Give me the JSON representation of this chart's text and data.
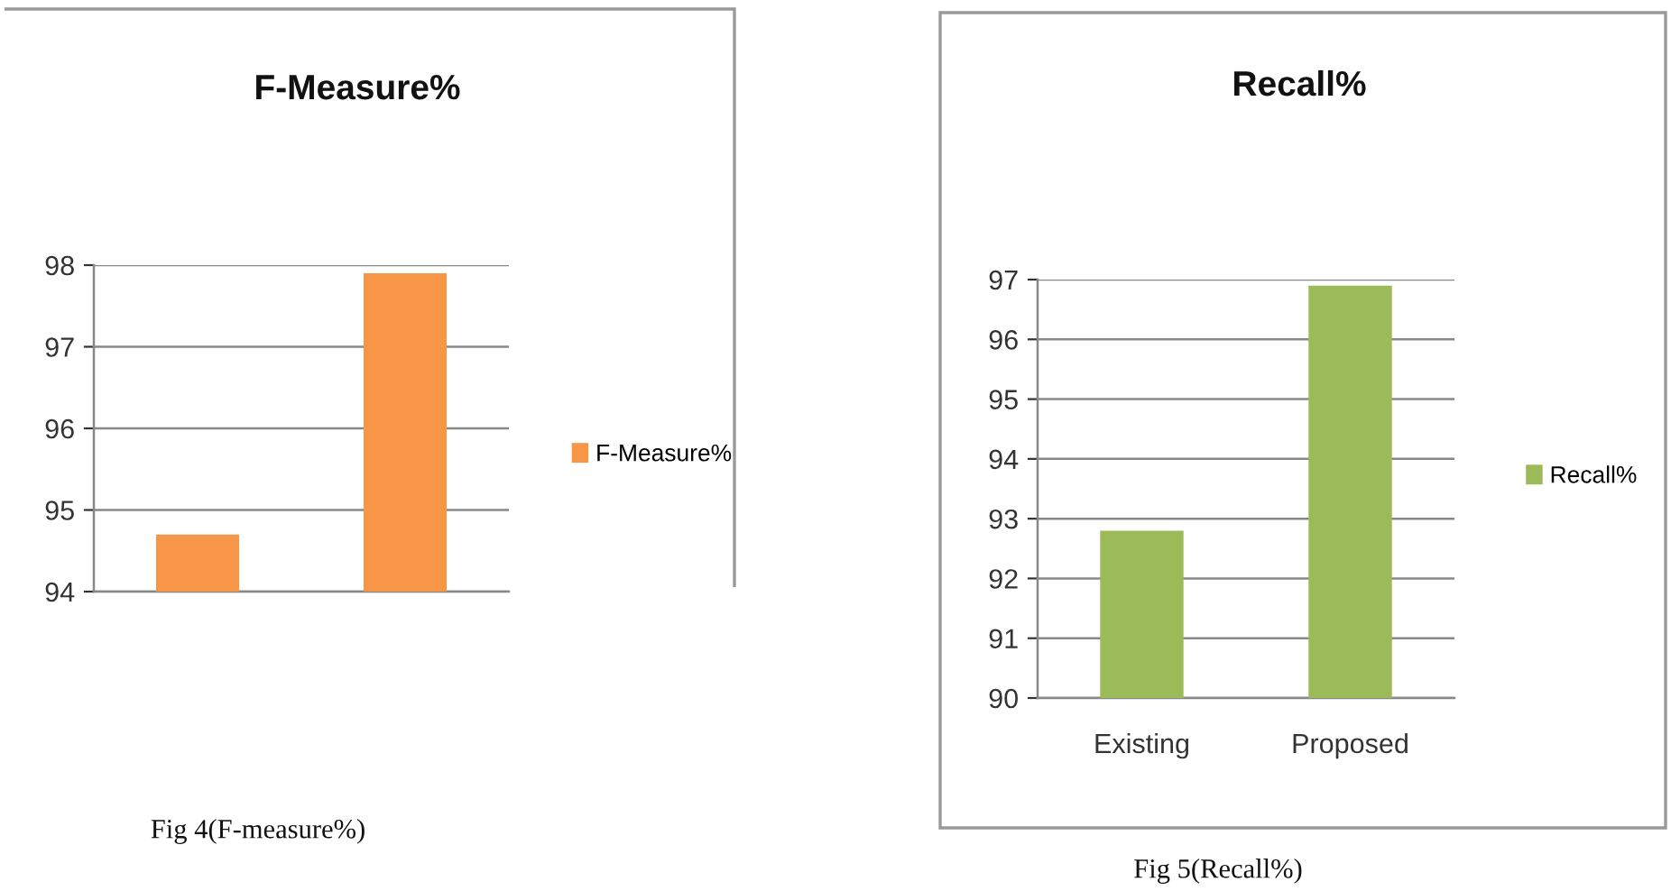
{
  "chart_data": [
    {
      "type": "bar",
      "title": "F-Measure%",
      "categories": [
        null,
        null
      ],
      "series": [
        {
          "name": "F-Measure%",
          "color": "#f79646",
          "values": [
            94.7,
            97.9
          ]
        }
      ],
      "ylim": [
        94,
        98
      ],
      "yticks": [
        94,
        95,
        96,
        97,
        98
      ],
      "grid": "y",
      "legend": "right",
      "tick_labels": "y",
      "annotations": [
        "Fig 4(F-measure%)"
      ]
    },
    {
      "type": "bar",
      "title": "Recall%",
      "categories": [
        "Existing",
        "Proposed"
      ],
      "series": [
        {
          "name": "Recall%",
          "color": "#9bbb59",
          "values": [
            92.8,
            96.9
          ]
        }
      ],
      "ylim": [
        90,
        97
      ],
      "yticks": [
        90,
        91,
        92,
        93,
        94,
        95,
        96,
        97
      ],
      "grid": "y",
      "legend": "right",
      "annotations": [
        "Fig 5(Recall%)"
      ]
    }
  ]
}
